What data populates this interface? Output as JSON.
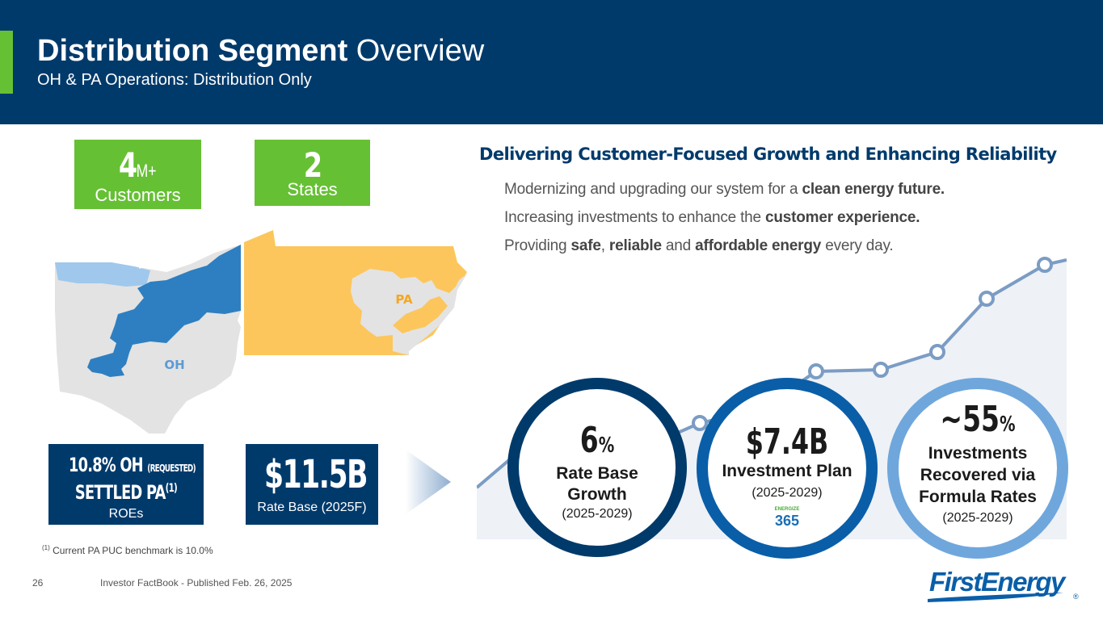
{
  "header": {
    "title_bold": "Distribution Segment",
    "title_rest": " Overview",
    "subtitle": "OH & PA Operations: Distribution Only"
  },
  "stats": {
    "customers_number": "4",
    "customers_suffix": "M+",
    "customers_label": "Customers",
    "states_number": "2",
    "states_label": "States"
  },
  "map": {
    "oh_label": "OH",
    "pa_label": "PA"
  },
  "roe": {
    "oh_line_main": "10.8% OH",
    "oh_line_note": "(REQUESTED)",
    "pa_line": "SETTLED PA",
    "pa_sup": "(1)",
    "label": "ROEs"
  },
  "rate_base": {
    "value": "$11.5B",
    "label": "Rate Base (2025F)"
  },
  "footnote": {
    "marker": "(1)",
    "text": " Current PA PUC benchmark is 10.0%"
  },
  "footer": {
    "page_number": "26",
    "source": "Investor FactBook - Published Feb. 26, 2025"
  },
  "headline": "Delivering Customer-Focused Growth and Enhancing Reliability",
  "bullets": [
    {
      "pre": "Modernizing and upgrading our system for a ",
      "b1": "clean energy future.",
      "mid": "",
      "b2": "",
      "mid2": "",
      "b3": "",
      "post": ""
    },
    {
      "pre": "Increasing investments to enhance the ",
      "b1": "customer experience.",
      "mid": "",
      "b2": "",
      "mid2": "",
      "b3": "",
      "post": ""
    },
    {
      "pre": "Providing ",
      "b1": "safe",
      "mid": ", ",
      "b2": "reliable",
      "mid2": " and ",
      "b3": "affordable energy",
      "post": " every day."
    }
  ],
  "circles": {
    "growth": {
      "num": "6",
      "unit": "%",
      "label1": "Rate Base",
      "label2": "Growth",
      "period": "(2025-2029)"
    },
    "investment": {
      "num": "$7.4B",
      "label1": "Investment Plan",
      "period": "(2025-2029)",
      "badge_top": "ENERGIZE",
      "badge_num": "365"
    },
    "recovery": {
      "num": "~55",
      "unit": "%",
      "label1": "Investments",
      "label2": "Recovered via",
      "label3": "Formula Rates",
      "period": "(2025-2029)"
    }
  },
  "logo": {
    "text": "FirstEnergy",
    "mark": "®"
  },
  "colors": {
    "navy": "#003a6b",
    "green": "#66c034",
    "light_blue": "#6fa7dc",
    "mid_blue": "#0a5ea8",
    "pa_yellow": "#fcc65c",
    "oh_blue": "#2e7fc1",
    "map_gray": "#e3e3e3",
    "chart_bg": "#eef1f6",
    "chart_line": "#7b9cc4"
  }
}
